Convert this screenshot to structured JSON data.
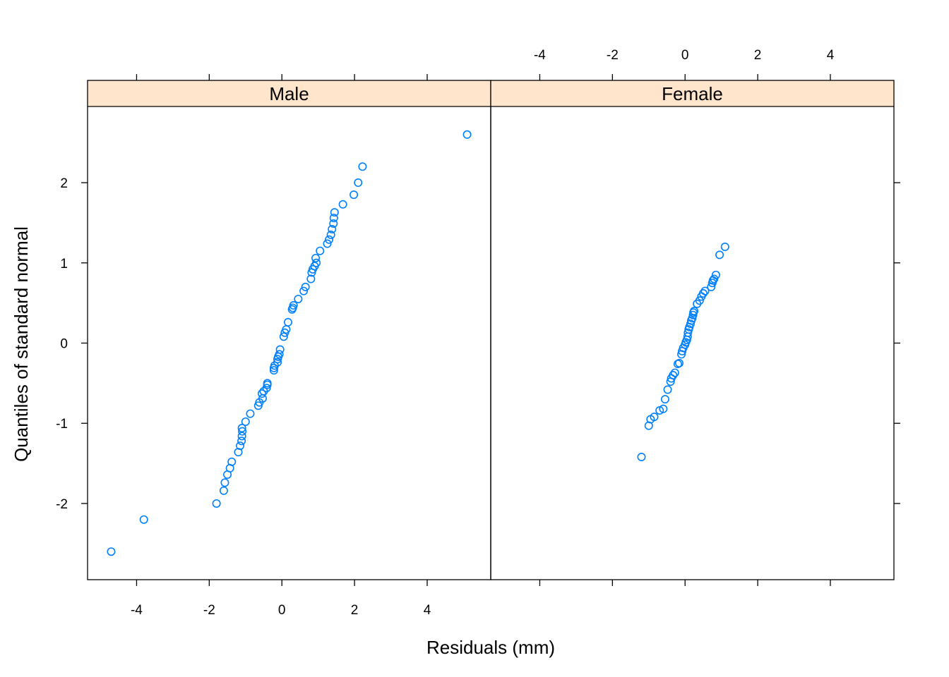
{
  "chart_data": {
    "type": "scatter",
    "xlabel": "Residuals (mm)",
    "ylabel": "Quantiles of standard normal",
    "xlim": [
      -5.35,
      5.75
    ],
    "ylim": [
      -2.95,
      2.95
    ],
    "x_ticks": [
      -4,
      -2,
      0,
      2,
      4
    ],
    "y_ticks": [
      -2,
      -1,
      0,
      1,
      2
    ],
    "grid": false,
    "marker": "open-circle",
    "point_color": "#0080ff",
    "strip_color": "#ffe5cc",
    "panels": [
      {
        "name": "Male",
        "x_axis_labels": "bottom",
        "y_axis_labels": "left",
        "points": [
          [
            -4.7,
            -2.6
          ],
          [
            -3.8,
            -2.2
          ],
          [
            -1.8,
            -2.0
          ],
          [
            -1.6,
            -1.84
          ],
          [
            -1.57,
            -1.74
          ],
          [
            -1.5,
            -1.64
          ],
          [
            -1.43,
            -1.56
          ],
          [
            -1.38,
            -1.48
          ],
          [
            -1.2,
            -1.36
          ],
          [
            -1.15,
            -1.28
          ],
          [
            -1.11,
            -1.22
          ],
          [
            -1.1,
            -1.16
          ],
          [
            -1.09,
            -1.1
          ],
          [
            -1.1,
            -1.06
          ],
          [
            -1.0,
            -0.98
          ],
          [
            -0.87,
            -0.88
          ],
          [
            -0.65,
            -0.78
          ],
          [
            -0.62,
            -0.74
          ],
          [
            -0.53,
            -0.69
          ],
          [
            -0.55,
            -0.63
          ],
          [
            -0.5,
            -0.6
          ],
          [
            -0.42,
            -0.56
          ],
          [
            -0.4,
            -0.52
          ],
          [
            -0.4,
            -0.5
          ],
          [
            -0.22,
            -0.34
          ],
          [
            -0.22,
            -0.31
          ],
          [
            -0.2,
            -0.28
          ],
          [
            -0.12,
            -0.24
          ],
          [
            -0.12,
            -0.2
          ],
          [
            -0.1,
            -0.17
          ],
          [
            -0.07,
            -0.14
          ],
          [
            -0.05,
            -0.08
          ],
          [
            0.05,
            0.08
          ],
          [
            0.08,
            0.13
          ],
          [
            0.12,
            0.17
          ],
          [
            0.17,
            0.26
          ],
          [
            0.28,
            0.42
          ],
          [
            0.3,
            0.44
          ],
          [
            0.32,
            0.47
          ],
          [
            0.45,
            0.55
          ],
          [
            0.6,
            0.65
          ],
          [
            0.65,
            0.7
          ],
          [
            0.8,
            0.8
          ],
          [
            0.82,
            0.88
          ],
          [
            0.85,
            0.92
          ],
          [
            0.9,
            0.96
          ],
          [
            0.95,
            1.0
          ],
          [
            0.93,
            1.06
          ],
          [
            1.05,
            1.15
          ],
          [
            1.25,
            1.24
          ],
          [
            1.3,
            1.29
          ],
          [
            1.35,
            1.35
          ],
          [
            1.38,
            1.42
          ],
          [
            1.42,
            1.49
          ],
          [
            1.43,
            1.56
          ],
          [
            1.45,
            1.63
          ],
          [
            1.68,
            1.73
          ],
          [
            1.98,
            1.85
          ],
          [
            2.1,
            2.0
          ],
          [
            2.22,
            2.2
          ],
          [
            5.1,
            2.6
          ]
        ]
      },
      {
        "name": "Female",
        "x_axis_labels": "top",
        "y_axis_labels": "none",
        "points": [
          [
            -1.2,
            -1.42
          ],
          [
            -1.0,
            -1.03
          ],
          [
            -0.95,
            -0.95
          ],
          [
            -0.85,
            -0.92
          ],
          [
            -0.7,
            -0.84
          ],
          [
            -0.6,
            -0.82
          ],
          [
            -0.55,
            -0.7
          ],
          [
            -0.48,
            -0.58
          ],
          [
            -0.4,
            -0.48
          ],
          [
            -0.38,
            -0.44
          ],
          [
            -0.33,
            -0.4
          ],
          [
            -0.28,
            -0.37
          ],
          [
            -0.2,
            -0.26
          ],
          [
            -0.16,
            -0.25
          ],
          [
            -0.1,
            -0.14
          ],
          [
            -0.08,
            -0.1
          ],
          [
            -0.05,
            -0.06
          ],
          [
            0.0,
            -0.02
          ],
          [
            0.02,
            0.01
          ],
          [
            0.05,
            0.04
          ],
          [
            0.07,
            0.08
          ],
          [
            0.08,
            0.13
          ],
          [
            0.1,
            0.17
          ],
          [
            0.12,
            0.2
          ],
          [
            0.15,
            0.24
          ],
          [
            0.17,
            0.28
          ],
          [
            0.2,
            0.31
          ],
          [
            0.22,
            0.35
          ],
          [
            0.23,
            0.38
          ],
          [
            0.25,
            0.4
          ],
          [
            0.33,
            0.49
          ],
          [
            0.4,
            0.53
          ],
          [
            0.45,
            0.58
          ],
          [
            0.5,
            0.62
          ],
          [
            0.55,
            0.65
          ],
          [
            0.72,
            0.7
          ],
          [
            0.75,
            0.75
          ],
          [
            0.77,
            0.78
          ],
          [
            0.8,
            0.8
          ],
          [
            0.85,
            0.85
          ],
          [
            0.95,
            1.1
          ],
          [
            1.1,
            1.2
          ]
        ]
      }
    ]
  }
}
